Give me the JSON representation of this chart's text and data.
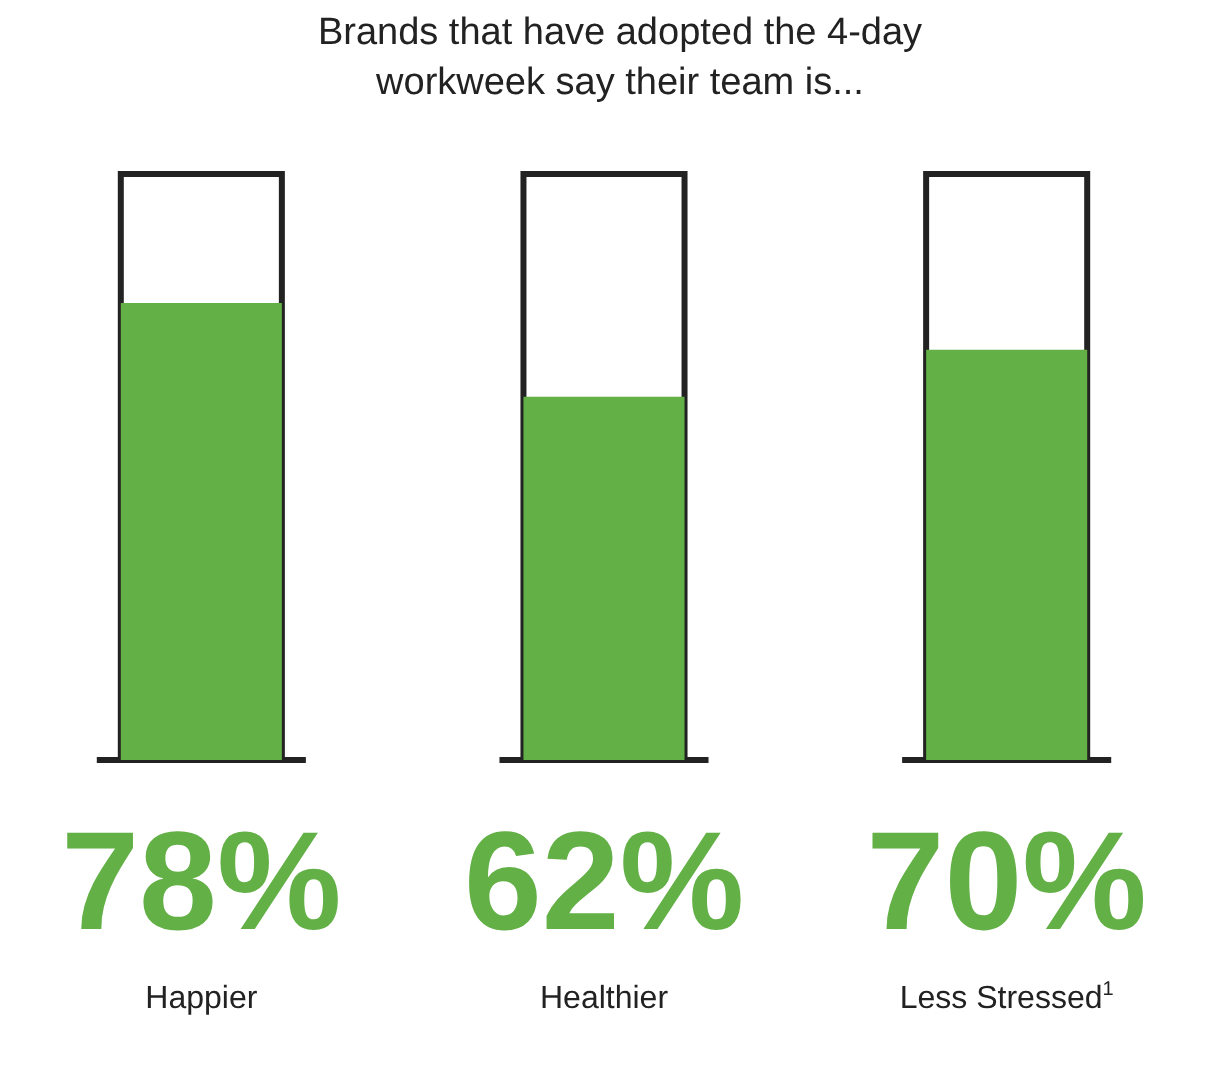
{
  "chart_data": {
    "type": "bar",
    "title": "Brands that have adopted the 4-day workweek say their team is...",
    "categories": [
      "Happier",
      "Healthier",
      "Less Stressed$^{1}$"
    ],
    "values": [
      78,
      62,
      70
    ],
    "value_labels": [
      "78%",
      "62%",
      "70%"
    ],
    "color": "#62b046",
    "ylim": [
      0,
      100
    ],
    "tick_labels": false
  }
}
